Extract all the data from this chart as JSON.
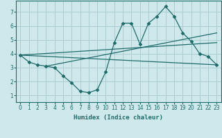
{
  "xlabel": "Humidex (Indice chaleur)",
  "bg_color": "#cfe8eb",
  "grid_color": "#aacdd2",
  "line_color": "#1e6b6b",
  "marker_color": "#1e6b6b",
  "xlim": [
    -0.5,
    23.5
  ],
  "ylim": [
    0.5,
    7.8
  ],
  "xticks": [
    0,
    1,
    2,
    3,
    4,
    5,
    6,
    7,
    8,
    9,
    10,
    11,
    12,
    13,
    14,
    15,
    16,
    17,
    18,
    19,
    20,
    21,
    22,
    23
  ],
  "yticks": [
    1,
    2,
    3,
    4,
    5,
    6,
    7
  ],
  "main_x": [
    0,
    1,
    2,
    3,
    4,
    5,
    6,
    7,
    8,
    9,
    10,
    11,
    12,
    13,
    14,
    15,
    16,
    17,
    18,
    19,
    20,
    21,
    22,
    23
  ],
  "main_y": [
    3.9,
    3.4,
    3.2,
    3.1,
    3.0,
    2.4,
    1.9,
    1.3,
    1.2,
    1.4,
    2.7,
    4.8,
    6.2,
    6.2,
    4.7,
    6.2,
    6.7,
    7.4,
    6.7,
    5.5,
    4.9,
    4.0,
    3.8,
    3.2
  ],
  "line1_x": [
    0,
    23
  ],
  "line1_y": [
    3.9,
    3.2
  ],
  "line2_x": [
    0,
    23
  ],
  "line2_y": [
    3.9,
    4.8
  ],
  "line3_x": [
    3,
    23
  ],
  "line3_y": [
    3.1,
    5.5
  ]
}
